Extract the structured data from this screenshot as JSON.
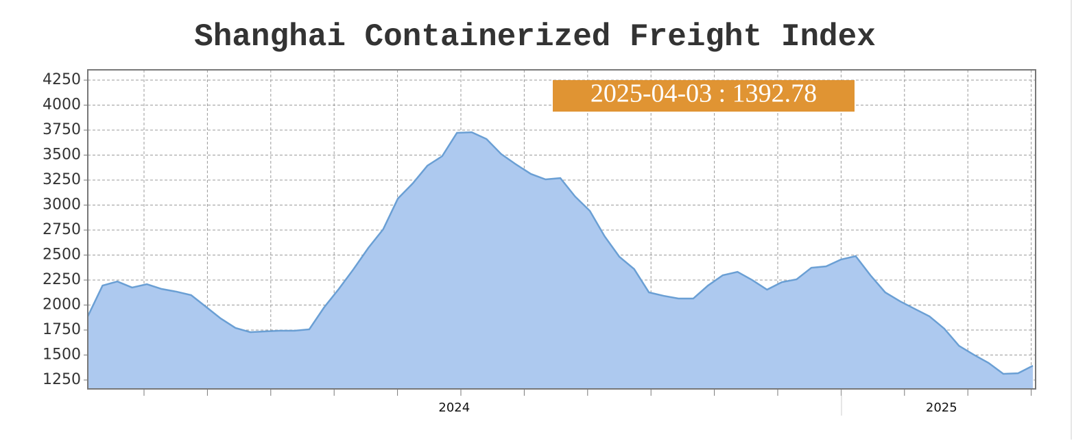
{
  "chart_data": {
    "type": "area",
    "title": "Shanghai Containerized Freight Index",
    "annotation": "2025-04-03 : 1392.78",
    "categories": [
      null,
      null,
      null,
      null,
      null,
      null,
      null,
      null,
      null,
      null,
      null,
      null,
      null,
      null,
      null,
      null,
      null,
      null,
      null,
      null,
      null,
      null,
      null,
      null,
      null,
      "2024",
      null,
      null,
      null,
      null,
      null,
      null,
      null,
      null,
      null,
      null,
      null,
      null,
      null,
      null,
      null,
      null,
      null,
      null,
      null,
      null,
      null,
      null,
      null,
      null,
      null,
      null,
      null,
      null,
      null,
      null,
      null,
      null,
      "2025",
      null,
      null,
      null,
      null,
      null,
      null
    ],
    "values": [
      1887,
      2195,
      2236,
      2175,
      2209,
      2161,
      2134,
      2099,
      1983,
      1866,
      1771,
      1729,
      1736,
      1743,
      1743,
      1757,
      1976,
      2161,
      2360,
      2572,
      2757,
      3065,
      3216,
      3394,
      3490,
      3723,
      3729,
      3661,
      3510,
      3407,
      3312,
      3257,
      3270,
      3086,
      2942,
      2688,
      2483,
      2360,
      2127,
      2092,
      2065,
      2065,
      2195,
      2298,
      2332,
      2250,
      2154,
      2229,
      2257,
      2373,
      2387,
      2455,
      2490,
      2298,
      2127,
      2038,
      1962,
      1887,
      1764,
      1592,
      1503,
      1421,
      1312,
      1318,
      1392.78
    ],
    "color": "#adc9ef",
    "line_color": "#6a9fd4",
    "ylim": [
      1161,
      4353
    ],
    "yticks": [
      1250,
      1500,
      1750,
      2000,
      2250,
      2500,
      2750,
      3000,
      3250,
      3500,
      3750,
      4000,
      4250
    ],
    "grid": true
  }
}
